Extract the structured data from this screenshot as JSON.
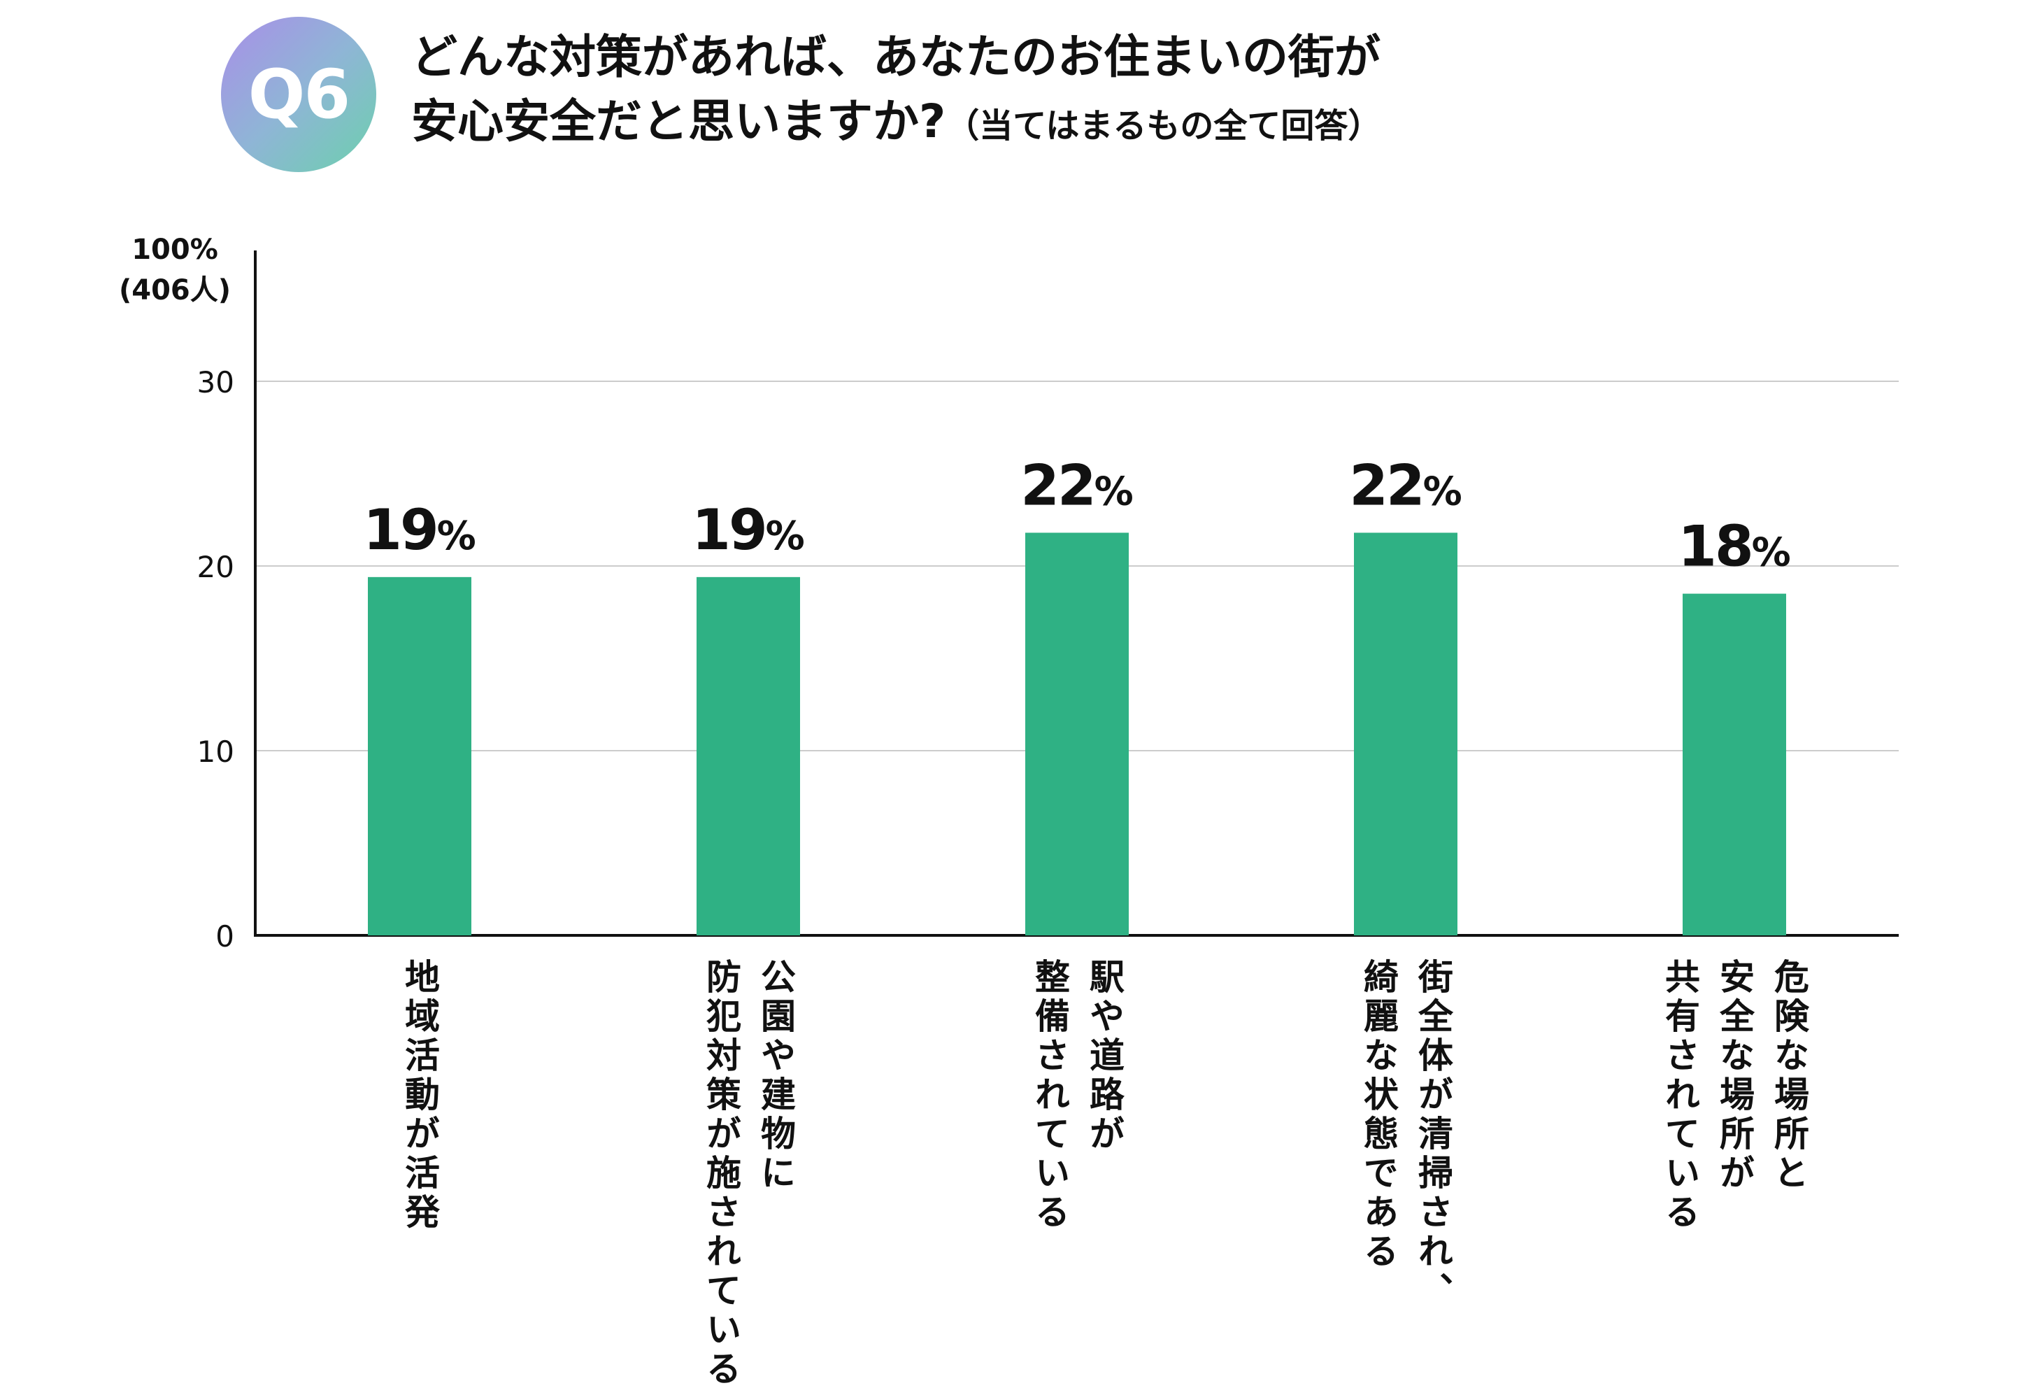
{
  "badge": "Q6",
  "title": {
    "line1": "どんな対策があれば、あなたのお住まいの街が",
    "line2": "安心安全だと思いますか?",
    "note": "（当てはまるもの全て回答）"
  },
  "colors": {
    "bar": "#2fb184",
    "axis": "#111111",
    "grid": "#cccccc"
  },
  "chart_data": {
    "type": "bar",
    "categories": [
      [
        "地域活動が活発"
      ],
      [
        "公園や建物に",
        "防犯対策が施されている"
      ],
      [
        "駅や道路が",
        "整備されている"
      ],
      [
        "街全体が清掃され、",
        "綺麗な状態である"
      ],
      [
        "危険な場所と",
        "安全な場所が",
        "共有されている"
      ]
    ],
    "values": [
      19.4,
      19.4,
      21.8,
      21.8,
      18.5
    ],
    "data_labels": [
      "19%",
      "19%",
      "22%",
      "22%",
      "18%"
    ],
    "ylim": [
      0,
      30
    ],
    "y_ticks": [
      "0",
      "10",
      "20",
      "30"
    ],
    "y_top_label": [
      "100%",
      "(406人)"
    ],
    "grid": true
  }
}
